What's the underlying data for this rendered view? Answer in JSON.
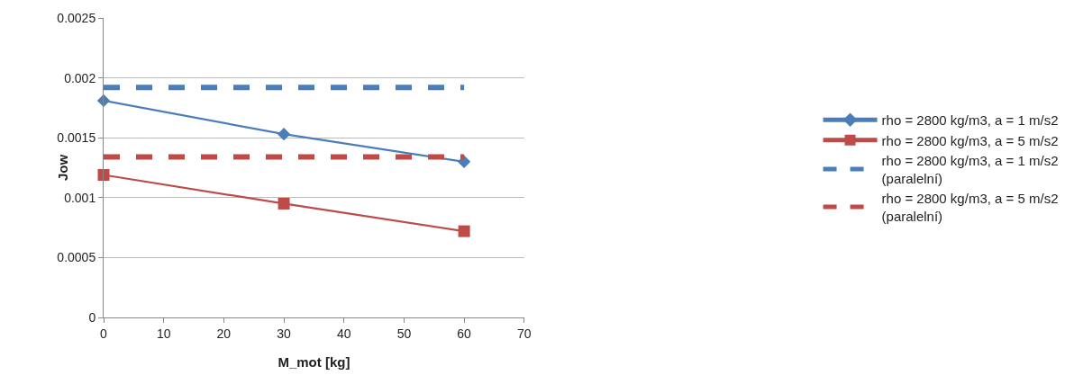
{
  "chart_data": {
    "type": "line",
    "xlabel": "M_mot [kg]",
    "ylabel": "Jow",
    "xlim": [
      0,
      70
    ],
    "xticks": [
      0,
      10,
      20,
      30,
      40,
      50,
      60,
      70
    ],
    "ylim": [
      0,
      0.0025
    ],
    "yticks": [
      0,
      0.0005,
      0.001,
      0.0015,
      0.002,
      0.0025
    ],
    "grid": "y",
    "legend": "right",
    "x": [
      0,
      30,
      60
    ],
    "series": [
      {
        "name": "rho = 2800 kg/m3, a = 1 m/s2",
        "color": "#4a7ebb",
        "values": [
          0.00181,
          0.00153,
          0.0013
        ],
        "marker": "diamond",
        "line_style": "solid"
      },
      {
        "name": "rho = 2800 kg/m3, a = 5 m/s2",
        "color": "#be4b48",
        "values": [
          0.00119,
          0.00095,
          0.00072
        ],
        "marker": "square",
        "line_style": "solid"
      },
      {
        "name": "rho = 2800 kg/m3, a = 1 m/s2\n(paralelní)",
        "color": "#4a7ebb",
        "values": [
          0.00192,
          0.00192,
          0.00192
        ],
        "marker": "none",
        "line_style": "dashed"
      },
      {
        "name": "rho = 2800 kg/m3, a = 5 m/s2\n(paralelní)",
        "color": "#be4b48",
        "values": [
          0.00134,
          0.00134,
          0.00134
        ],
        "marker": "none",
        "line_style": "dashed"
      }
    ]
  }
}
